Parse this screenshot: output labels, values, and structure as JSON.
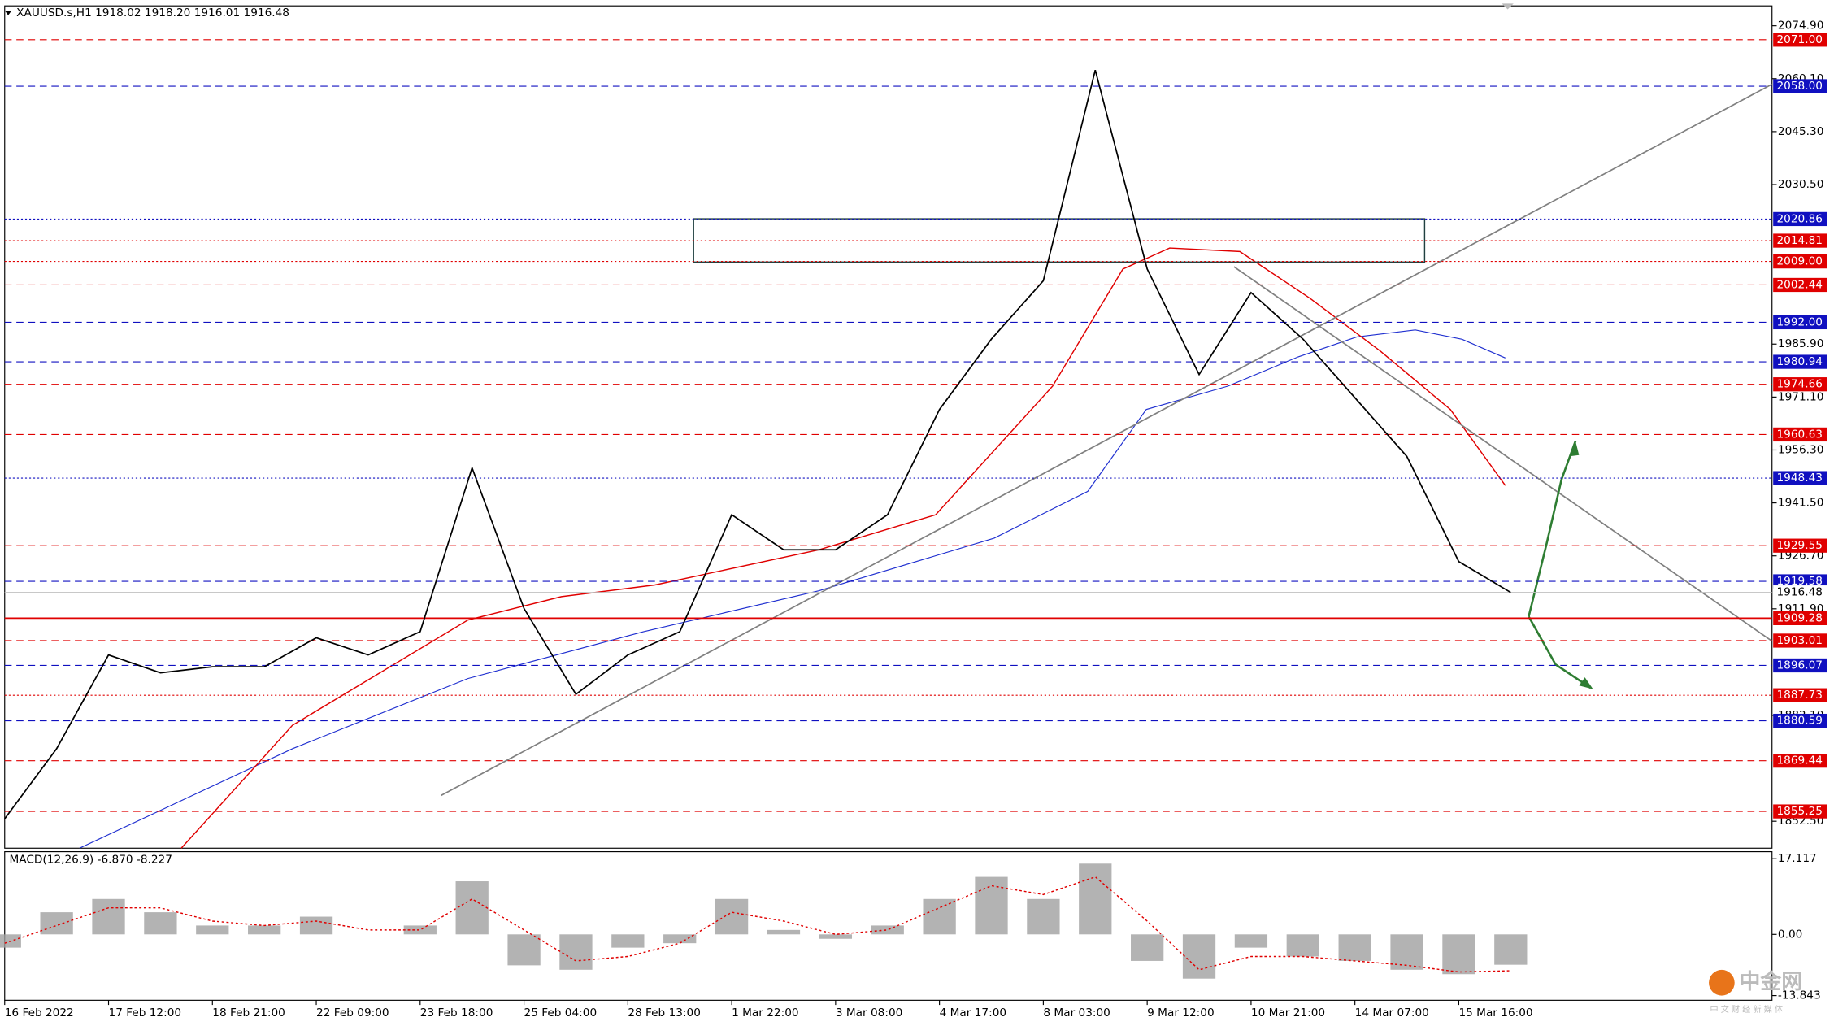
{
  "chart_data": [
    {
      "type": "line",
      "title": "XAUUSD.s,H1  1918.02 1918.20 1916.01 1916.48",
      "categories": [
        "16 Feb 2022",
        null,
        "17 Feb 12:00",
        null,
        "18 Feb 21:00",
        null,
        "22 Feb 09:00",
        null,
        "23 Feb 18:00",
        null,
        "25 Feb 04:00",
        null,
        "28 Feb 13:00",
        null,
        "1 Mar 22:00",
        null,
        "3 Mar 08:00",
        null,
        "4 Mar 17:00",
        null,
        "8 Mar 03:00",
        null,
        "9 Mar 12:00",
        null,
        "10 Mar 21:00",
        null,
        "14 Mar 07:00",
        null,
        "15 Mar 16:00",
        null
      ],
      "series": [
        {
          "name": "XAUUSD.s",
          "color": "#000000",
          "values": [
            1853.2,
            1872.8,
            1899,
            1894,
            1895.7,
            1895.7,
            1903.8,
            1899,
            1905.5,
            1951.3,
            1912,
            1888,
            1899,
            1905.5,
            1938.2,
            1928.4,
            1928.4,
            1938.2,
            1967.6,
            1987.3,
            2003.6,
            2062.5,
            2006.9,
            1977.4,
            2000.3,
            1987.3,
            1970.9,
            1954.5,
            1925.1,
            1916.48
          ]
        }
      ],
      "ylim": [
        1844.98,
        2080.46
      ],
      "yticks": [
        {
          "value": 2074.9,
          "label": "2074.90"
        },
        {
          "value": 2060.1,
          "label": "2060.10"
        },
        {
          "value": 2045.3,
          "label": "2045.30"
        },
        {
          "value": 2030.5,
          "label": "2030.50"
        },
        {
          "value": 1985.9,
          "label": "1985.90"
        },
        {
          "value": 1971.1,
          "label": "1971.10"
        },
        {
          "value": 1956.3,
          "label": "1956.30"
        },
        {
          "value": 1941.5,
          "label": "1941.50"
        },
        {
          "value": 1926.7,
          "label": "1926.70"
        },
        {
          "value": 1911.9,
          "label": "1911.90"
        },
        {
          "value": 1882.1,
          "label": "1882.10"
        },
        {
          "value": 1852.5,
          "label": "1852.50"
        }
      ],
      "levels": [
        {
          "value": 2071,
          "label": "2071.00",
          "color": "#e00000",
          "style": "dashed"
        },
        {
          "value": 2058,
          "label": "2058.00",
          "color": "#1010c0",
          "style": "dashed"
        },
        {
          "value": 2020.86,
          "label": "2020.86",
          "color": "#1010c0",
          "style": "dotted"
        },
        {
          "value": 2014.81,
          "label": "2014.81",
          "color": "#e00000",
          "style": "dotted"
        },
        {
          "value": 2009,
          "label": "2009.00",
          "color": "#e00000",
          "style": "dotted"
        },
        {
          "value": 2002.44,
          "label": "2002.44",
          "color": "#e00000",
          "style": "dashed"
        },
        {
          "value": 1992,
          "label": "1992.00",
          "color": "#1010c0",
          "style": "dashed"
        },
        {
          "value": 1980.94,
          "label": "1980.94",
          "color": "#1010c0",
          "style": "dashed"
        },
        {
          "value": 1974.66,
          "label": "1974.66",
          "color": "#e00000",
          "style": "dashed"
        },
        {
          "value": 1960.63,
          "label": "1960.63",
          "color": "#e00000",
          "style": "dashed"
        },
        {
          "value": 1948.43,
          "label": "1948.43",
          "color": "#1010c0",
          "style": "dotted"
        },
        {
          "value": 1929.55,
          "label": "1929.55",
          "color": "#e00000",
          "style": "dashed"
        },
        {
          "value": 1919.58,
          "label": "1919.58",
          "color": "#1010c0",
          "style": "dashed"
        },
        {
          "value": 1916.48,
          "label": "1916.48",
          "color": "#c0c0c0",
          "style": "current"
        },
        {
          "value": 1909.28,
          "label": "1909.28",
          "color": "#e00000",
          "style": "solid"
        },
        {
          "value": 1903.01,
          "label": "1903.01",
          "color": "#e00000",
          "style": "dashed"
        },
        {
          "value": 1896.07,
          "label": "1896.07",
          "color": "#1010c0",
          "style": "dashed"
        },
        {
          "value": 1887.73,
          "label": "1887.73",
          "color": "#e00000",
          "style": "dotted"
        },
        {
          "value": 1880.59,
          "label": "1880.59",
          "color": "#1010c0",
          "style": "dashed"
        },
        {
          "value": 1869.44,
          "label": "1869.44",
          "color": "#e00000",
          "style": "dashed"
        },
        {
          "value": 1855.25,
          "label": "1855.25",
          "color": "#e00000",
          "style": "dashed"
        }
      ]
    },
    {
      "type": "macd",
      "title": "MACD(12,26,9) -6.870 -8.227",
      "series": [
        {
          "name": "MACD",
          "color": "#a0a0a0",
          "values": [
            -3,
            5,
            8,
            5,
            2,
            2,
            4,
            0,
            2,
            12,
            -7,
            -8,
            -3,
            -2,
            8,
            1,
            -1,
            2,
            8,
            13,
            8,
            16,
            -6,
            -10,
            -3,
            -5,
            -6,
            -8,
            -9,
            -6.87
          ]
        },
        {
          "name": "Signal",
          "color": "#e00000",
          "values": [
            -2,
            2,
            6,
            6,
            3,
            2,
            3,
            1,
            1,
            8,
            1,
            -6,
            -5,
            -2,
            5,
            3,
            0,
            1,
            6,
            11,
            9,
            13,
            3,
            -8,
            -5,
            -5,
            -6,
            -7,
            -8.5,
            -8.227
          ]
        }
      ],
      "ylim": [
        -14.9,
        18.7
      ],
      "yticks": [
        17.117,
        {
          "value": 0,
          "label": "0.00"
        },
        -13.843
      ]
    }
  ],
  "watermark": {
    "name": "中金网",
    "tagline": "中 文 财 经 新 媒 体"
  }
}
